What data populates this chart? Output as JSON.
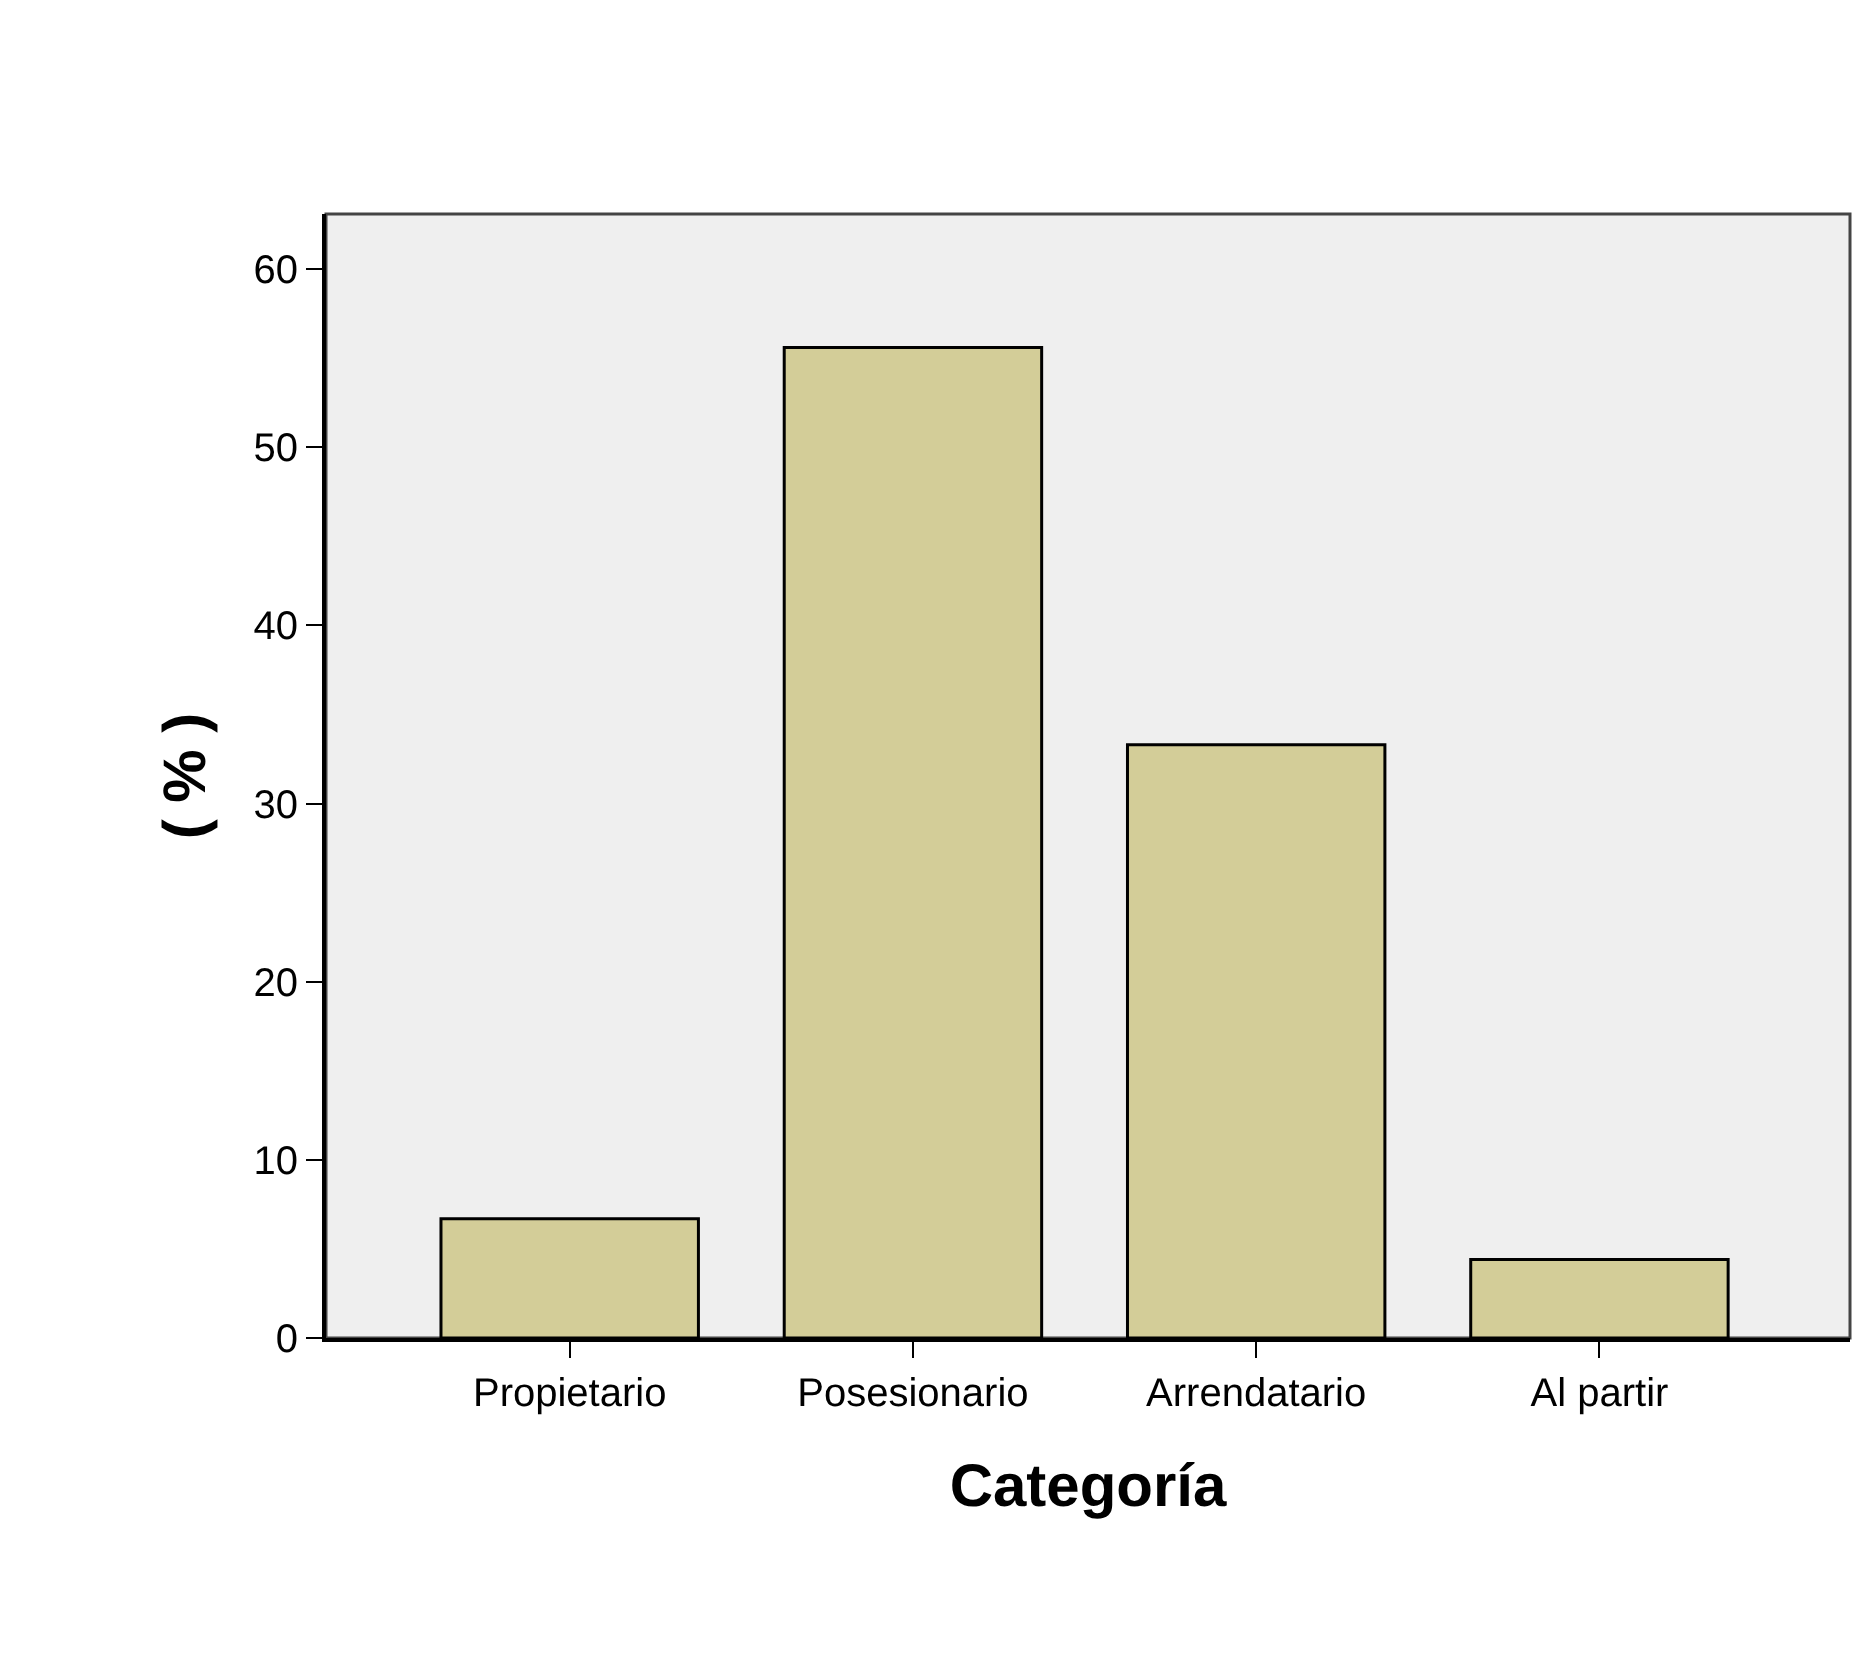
{
  "chart_data": {
    "type": "bar",
    "xlabel": "Categoría",
    "ylabel": "( % )",
    "categories": [
      "Propietario",
      "Posesionario",
      "Arrendatario",
      "Al partir"
    ],
    "values": [
      6.7,
      55.6,
      33.3,
      4.4
    ],
    "color": "#d3cd98",
    "ylim": [
      0,
      63.1
    ],
    "yticks": [
      0,
      10,
      20,
      30,
      40,
      50,
      60
    ],
    "grid": false,
    "legend": false
  }
}
